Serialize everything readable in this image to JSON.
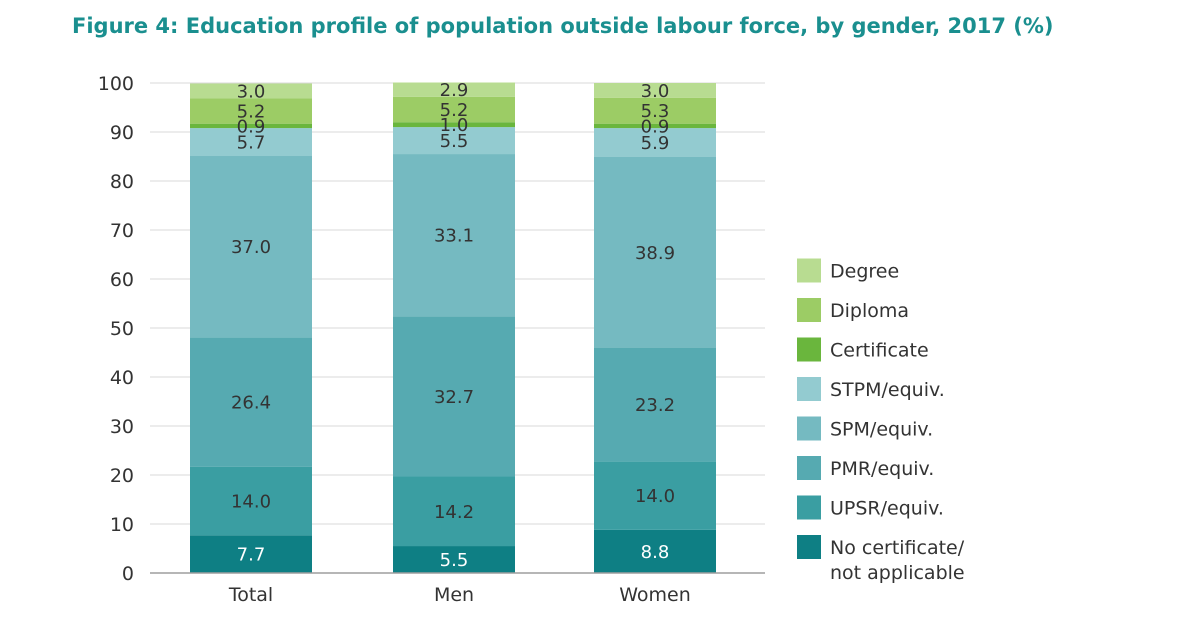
{
  "chart_data": {
    "type": "bar",
    "stacked": true,
    "title": "Figure 4: Education profile of population outside labour force, by gender, 2017 (%)",
    "xlabel": "",
    "ylabel": "",
    "ylim": [
      0,
      100
    ],
    "yticks": [
      0,
      10,
      20,
      30,
      40,
      50,
      60,
      70,
      80,
      90,
      100
    ],
    "grid": true,
    "legend_position": "right",
    "categories": [
      "Total",
      "Men",
      "Women"
    ],
    "series": [
      {
        "name": "No certificate/ not applicable",
        "legend_lines": [
          "No certificate/",
          "not applicable"
        ],
        "color": "#0e7f84",
        "label_color": "#ffffff",
        "values": [
          7.7,
          5.5,
          8.8
        ]
      },
      {
        "name": "UPSR/equiv.",
        "legend_lines": [
          "UPSR/equiv."
        ],
        "color": "#3a9ea2",
        "label_color": "#333333",
        "values": [
          14.0,
          14.2,
          14.0
        ]
      },
      {
        "name": "PMR/equiv.",
        "legend_lines": [
          "PMR/equiv."
        ],
        "color": "#56aab1",
        "label_color": "#333333",
        "values": [
          26.4,
          32.7,
          23.2
        ]
      },
      {
        "name": "SPM/equiv.",
        "legend_lines": [
          "SPM/equiv."
        ],
        "color": "#75bac1",
        "label_color": "#333333",
        "values": [
          37.0,
          33.1,
          38.9
        ]
      },
      {
        "name": "STPM/equiv.",
        "legend_lines": [
          "STPM/equiv."
        ],
        "color": "#93cbd0",
        "label_color": "#333333",
        "values": [
          5.7,
          5.5,
          5.9
        ]
      },
      {
        "name": "Certificate",
        "legend_lines": [
          "Certificate"
        ],
        "color": "#6ab63d",
        "label_color": "#333333",
        "values": [
          0.9,
          1.0,
          0.9
        ]
      },
      {
        "name": "Diploma",
        "legend_lines": [
          "Diploma"
        ],
        "color": "#9ccc65",
        "label_color": "#333333",
        "values": [
          5.2,
          5.2,
          5.3
        ]
      },
      {
        "name": "Degree",
        "legend_lines": [
          "Degree"
        ],
        "color": "#b8dc91",
        "label_color": "#333333",
        "values": [
          3.0,
          2.9,
          3.0
        ]
      }
    ],
    "data_labels": [
      [
        "7.7",
        "5.5",
        "8.8"
      ],
      [
        "14.0",
        "14.2",
        "14.0"
      ],
      [
        "26.4",
        "32.7",
        "23.2"
      ],
      [
        "37.0",
        "33.1",
        "38.9"
      ],
      [
        "5.7",
        "5.5",
        "5.9"
      ],
      [
        "0.9",
        "1.0",
        "0.9"
      ],
      [
        "5.2",
        "5.2",
        "5.3"
      ],
      [
        "3.0",
        "2.9",
        "3.0"
      ]
    ]
  }
}
